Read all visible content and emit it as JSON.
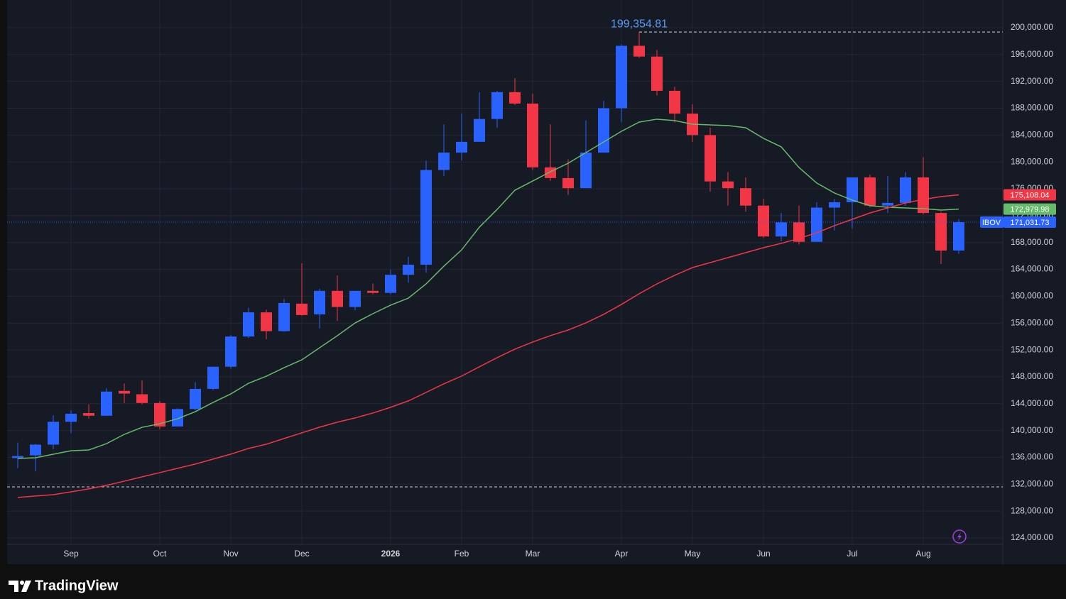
{
  "chart_data": {
    "type": "candlestick",
    "symbol": "IBOV",
    "categories": [
      null,
      null,
      null,
      "Sep",
      null,
      null,
      null,
      null,
      "Oct",
      null,
      null,
      null,
      "Nov",
      null,
      null,
      null,
      "Dec",
      null,
      null,
      null,
      null,
      "2026",
      null,
      null,
      null,
      "Feb",
      null,
      null,
      null,
      "Mar",
      null,
      null,
      null,
      null,
      "Apr",
      null,
      null,
      null,
      "May",
      null,
      null,
      null,
      "Jun",
      null,
      null,
      null,
      null,
      "Jul",
      null,
      null,
      null,
      "Aug",
      null,
      null
    ],
    "open": [
      135900,
      136300,
      137900,
      141300,
      142600,
      142200,
      145900,
      145400,
      144100,
      140600,
      143200,
      146200,
      149500,
      154000,
      157600,
      154800,
      158900,
      157300,
      160800,
      158400,
      160800,
      160500,
      163200,
      164700,
      178800,
      181400,
      183000,
      186400,
      190400,
      188700,
      179200,
      177600,
      176100,
      181400,
      188000,
      197300,
      195700,
      190600,
      187200,
      184000,
      177100,
      176100,
      173500,
      168900,
      171000,
      168100,
      173200,
      174000,
      177700,
      173500,
      173900,
      177700,
      172400,
      166800
    ],
    "high": [
      138200,
      138000,
      142300,
      143000,
      143900,
      146300,
      147000,
      147500,
      144400,
      143300,
      147200,
      149500,
      154200,
      158300,
      158000,
      159600,
      164900,
      161100,
      163100,
      160800,
      161900,
      164000,
      165900,
      180200,
      185600,
      187200,
      190400,
      190600,
      192500,
      190200,
      185600,
      180400,
      186200,
      189100,
      197500,
      199354.81,
      196700,
      191200,
      188600,
      185100,
      178500,
      177700,
      174500,
      172400,
      173500,
      174000,
      174500,
      177700,
      178100,
      177900,
      178500,
      180700,
      172600,
      171500
    ],
    "low": [
      134400,
      133900,
      137200,
      139600,
      141800,
      142200,
      144100,
      143900,
      140200,
      140600,
      143000,
      146000,
      149200,
      153800,
      153600,
      154700,
      157100,
      155200,
      156300,
      157900,
      160300,
      160300,
      162000,
      163500,
      177900,
      180200,
      183000,
      185100,
      188500,
      178800,
      177200,
      175100,
      176100,
      181400,
      185900,
      195500,
      189900,
      185900,
      183000,
      175600,
      173500,
      172600,
      168700,
      168200,
      167700,
      168100,
      169800,
      170100,
      173300,
      172400,
      173500,
      172200,
      164800,
      166300
    ],
    "close": [
      136200,
      137900,
      141300,
      142500,
      142200,
      145800,
      145500,
      144100,
      140600,
      143200,
      146200,
      149500,
      154000,
      157600,
      154800,
      159000,
      157200,
      160800,
      158400,
      160800,
      160500,
      163200,
      164700,
      178800,
      181400,
      183000,
      186400,
      190400,
      188700,
      179200,
      177600,
      176100,
      181400,
      188000,
      197300,
      195700,
      190600,
      187200,
      184000,
      177100,
      176100,
      173500,
      168900,
      171000,
      168100,
      173200,
      174000,
      177700,
      173500,
      173900,
      177700,
      172400,
      166800,
      171031.73
    ],
    "up_color": "#2962ff",
    "down_color": "#f23645",
    "last_label": "171,031.73",
    "high_label": "199,354.81",
    "hline": 131610,
    "lines": [
      {
        "color": "#66bb6a",
        "last_label": "172,979.98",
        "values": [
          135840,
          135940,
          136470,
          136990,
          137100,
          138050,
          139430,
          140480,
          141010,
          141750,
          142810,
          144180,
          145450,
          147040,
          148090,
          149360,
          150530,
          152320,
          154120,
          156020,
          157400,
          158670,
          159720,
          161840,
          164480,
          166910,
          170290,
          172930,
          175790,
          177160,
          178540,
          179810,
          181400,
          182980,
          184570,
          185940,
          186370,
          186160,
          185630,
          185520,
          185420,
          185100,
          183520,
          182250,
          179180,
          176860,
          175380,
          174320,
          173480,
          173260,
          173150,
          173050,
          172840,
          172979.98
        ]
      },
      {
        "color": "#f23645",
        "last_label": "175,108.04",
        "values": [
          130030,
          130240,
          130450,
          130870,
          131300,
          131830,
          132460,
          133100,
          133730,
          134370,
          135000,
          135740,
          136480,
          137330,
          137960,
          138810,
          139650,
          140500,
          141240,
          141870,
          142610,
          143460,
          144410,
          145680,
          146950,
          148110,
          149490,
          150850,
          152120,
          153180,
          154130,
          154970,
          156030,
          157300,
          158780,
          160370,
          161840,
          163110,
          164270,
          165010,
          165750,
          166490,
          167230,
          167870,
          168610,
          169450,
          170510,
          171460,
          172410,
          173150,
          173890,
          174420,
          174840,
          175108.04
        ]
      }
    ],
    "ylim": [
      120085,
      204123
    ],
    "yticks": [
      {
        "value": 124000,
        "label": "124,000.00"
      },
      {
        "value": 128000,
        "label": "128,000.00"
      },
      {
        "value": 132000,
        "label": "132,000.00"
      },
      {
        "value": 136000,
        "label": "136,000.00"
      },
      {
        "value": 140000,
        "label": "140,000.00"
      },
      {
        "value": 144000,
        "label": "144,000.00"
      },
      {
        "value": 148000,
        "label": "148,000.00"
      },
      {
        "value": 152000,
        "label": "152,000.00"
      },
      {
        "value": 156000,
        "label": "156,000.00"
      },
      {
        "value": 160000,
        "label": "160,000.00"
      },
      {
        "value": 164000,
        "label": "164,000.00"
      },
      {
        "value": 168000,
        "label": "168,000.00"
      },
      {
        "value": 172000,
        "label": "172,000.00"
      },
      {
        "value": 176000,
        "label": "176,000.00"
      },
      {
        "value": 180000,
        "label": "180,000.00"
      },
      {
        "value": 184000,
        "label": "184,000.00"
      },
      {
        "value": 188000,
        "label": "188,000.00"
      },
      {
        "value": 192000,
        "label": "192,000.00"
      },
      {
        "value": 196000,
        "label": "196,000.00"
      },
      {
        "value": 200000,
        "label": "200,000.00"
      }
    ],
    "grid": true
  },
  "brand": "TradingView"
}
